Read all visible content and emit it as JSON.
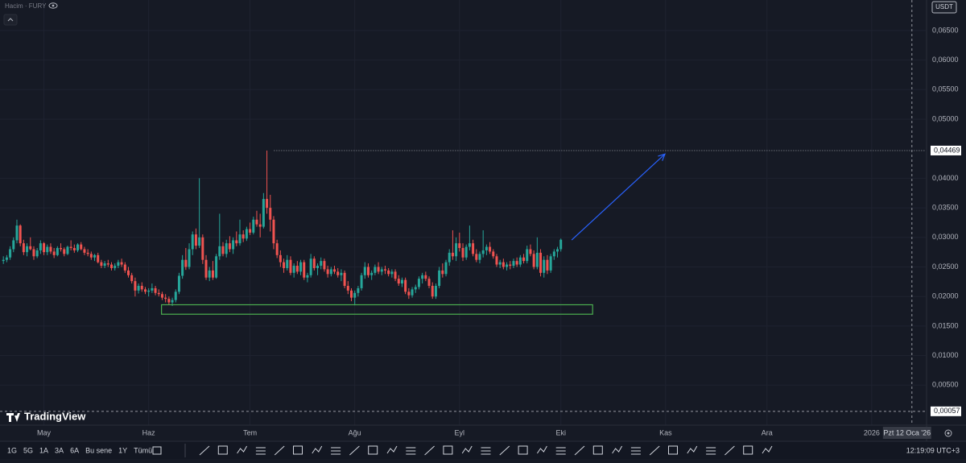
{
  "header": {
    "legend": "Hacim · FURY",
    "currency": "USDT"
  },
  "chart_data": {
    "type": "candlestick",
    "up_color": "#26a69a",
    "down_color": "#ef5350",
    "xlim": [
      -1,
      273
    ],
    "ylim": [
      -0.00177,
      0.07016
    ],
    "grid": true,
    "xticks": [
      {
        "value": 12,
        "label": "May"
      },
      {
        "value": 43,
        "label": "Haz"
      },
      {
        "value": 73,
        "label": "Tem"
      },
      {
        "value": 104,
        "label": "Ağu"
      },
      {
        "value": 135,
        "label": "Eyl"
      },
      {
        "value": 165,
        "label": "Eki"
      },
      {
        "value": 196,
        "label": "Kas"
      },
      {
        "value": 226,
        "label": "Ara"
      },
      {
        "value": 257,
        "label": "2026"
      }
    ],
    "yticks": [
      {
        "value": 0.065,
        "label": "0,06500"
      },
      {
        "value": 0.06,
        "label": "0,06000"
      },
      {
        "value": 0.055,
        "label": "0,05500"
      },
      {
        "value": 0.05,
        "label": "0,05000"
      },
      {
        "value": 0.04,
        "label": "0,04000"
      },
      {
        "value": 0.035,
        "label": "0,03500"
      },
      {
        "value": 0.03,
        "label": "0,03000"
      },
      {
        "value": 0.025,
        "label": "0,02500"
      },
      {
        "value": 0.02,
        "label": "0,02000"
      },
      {
        "value": 0.015,
        "label": "0,01500"
      },
      {
        "value": 0.01,
        "label": "0,01000"
      },
      {
        "value": 0.005,
        "label": "0,00500"
      }
    ],
    "ohlc": [
      [
        0.026,
        0.0268,
        0.0255,
        0.0262
      ],
      [
        0.0262,
        0.027,
        0.0258,
        0.0266
      ],
      [
        0.0266,
        0.0285,
        0.0262,
        0.028
      ],
      [
        0.028,
        0.03,
        0.0275,
        0.0295
      ],
      [
        0.0295,
        0.033,
        0.029,
        0.032
      ],
      [
        0.032,
        0.0322,
        0.0285,
        0.029
      ],
      [
        0.029,
        0.0296,
        0.027,
        0.0275
      ],
      [
        0.0275,
        0.029,
        0.0268,
        0.0285
      ],
      [
        0.0285,
        0.03,
        0.0278,
        0.028
      ],
      [
        0.028,
        0.0285,
        0.0262,
        0.0268
      ],
      [
        0.0268,
        0.0282,
        0.0265,
        0.0278
      ],
      [
        0.0278,
        0.0295,
        0.0272,
        0.029
      ],
      [
        0.029,
        0.0292,
        0.027,
        0.0275
      ],
      [
        0.0275,
        0.0288,
        0.027,
        0.0284
      ],
      [
        0.0284,
        0.029,
        0.0272,
        0.0276
      ],
      [
        0.0276,
        0.0282,
        0.0265,
        0.027
      ],
      [
        0.027,
        0.0285,
        0.0268,
        0.0282
      ],
      [
        0.0282,
        0.029,
        0.0276,
        0.028
      ],
      [
        0.028,
        0.0283,
        0.0268,
        0.0272
      ],
      [
        0.0272,
        0.0286,
        0.027,
        0.0284
      ],
      [
        0.0284,
        0.0295,
        0.0278,
        0.0282
      ],
      [
        0.0282,
        0.0288,
        0.0274,
        0.0278
      ],
      [
        0.0278,
        0.029,
        0.0275,
        0.0288
      ],
      [
        0.0288,
        0.0292,
        0.0278,
        0.028
      ],
      [
        0.028,
        0.0284,
        0.027,
        0.0274
      ],
      [
        0.0274,
        0.028,
        0.0268,
        0.0272
      ],
      [
        0.0272,
        0.0276,
        0.0262,
        0.0266
      ],
      [
        0.0266,
        0.0272,
        0.026,
        0.027
      ],
      [
        0.027,
        0.0274,
        0.0256,
        0.0258
      ],
      [
        0.0258,
        0.0262,
        0.0248,
        0.0252
      ],
      [
        0.0252,
        0.026,
        0.0248,
        0.0256
      ],
      [
        0.0256,
        0.0262,
        0.025,
        0.0254
      ],
      [
        0.0254,
        0.0258,
        0.0244,
        0.0248
      ],
      [
        0.0248,
        0.0256,
        0.0244,
        0.0252
      ],
      [
        0.0252,
        0.0262,
        0.0248,
        0.0258
      ],
      [
        0.0258,
        0.0264,
        0.025,
        0.0254
      ],
      [
        0.0254,
        0.0258,
        0.024,
        0.0244
      ],
      [
        0.0244,
        0.025,
        0.0232,
        0.0236
      ],
      [
        0.0236,
        0.024,
        0.0222,
        0.0226
      ],
      [
        0.0226,
        0.0232,
        0.02,
        0.021
      ],
      [
        0.021,
        0.0222,
        0.0205,
        0.0218
      ],
      [
        0.0218,
        0.0224,
        0.0208,
        0.0212
      ],
      [
        0.0212,
        0.0216,
        0.0204,
        0.0208
      ],
      [
        0.0208,
        0.0214,
        0.02,
        0.021
      ],
      [
        0.021,
        0.0222,
        0.0206,
        0.0214
      ],
      [
        0.0214,
        0.0218,
        0.0202,
        0.0206
      ],
      [
        0.0206,
        0.0212,
        0.02,
        0.0204
      ],
      [
        0.0204,
        0.0208,
        0.0194,
        0.0198
      ],
      [
        0.0198,
        0.0204,
        0.019,
        0.0196
      ],
      [
        0.0196,
        0.02,
        0.0186,
        0.019
      ],
      [
        0.019,
        0.0198,
        0.0184,
        0.0194
      ],
      [
        0.0194,
        0.0212,
        0.019,
        0.0208
      ],
      [
        0.0208,
        0.024,
        0.0204,
        0.0235
      ],
      [
        0.0235,
        0.027,
        0.023,
        0.0262
      ],
      [
        0.0262,
        0.0282,
        0.0245,
        0.025
      ],
      [
        0.025,
        0.029,
        0.0246,
        0.028
      ],
      [
        0.028,
        0.031,
        0.027,
        0.0305
      ],
      [
        0.0305,
        0.0315,
        0.028,
        0.0286
      ],
      [
        0.0286,
        0.04,
        0.0282,
        0.03
      ],
      [
        0.03,
        0.0305,
        0.0255,
        0.0262
      ],
      [
        0.0262,
        0.027,
        0.0228,
        0.0232
      ],
      [
        0.0232,
        0.025,
        0.0226,
        0.0244
      ],
      [
        0.0244,
        0.026,
        0.0228,
        0.0232
      ],
      [
        0.0232,
        0.0272,
        0.023,
        0.0268
      ],
      [
        0.0268,
        0.034,
        0.0262,
        0.0285
      ],
      [
        0.0285,
        0.0292,
        0.0268,
        0.0272
      ],
      [
        0.0272,
        0.0296,
        0.0266,
        0.029
      ],
      [
        0.029,
        0.0302,
        0.0275,
        0.028
      ],
      [
        0.028,
        0.03,
        0.0272,
        0.0295
      ],
      [
        0.0295,
        0.031,
        0.0285,
        0.029
      ],
      [
        0.029,
        0.033,
        0.0286,
        0.0305
      ],
      [
        0.0305,
        0.0312,
        0.0292,
        0.0298
      ],
      [
        0.0298,
        0.0318,
        0.0294,
        0.0314
      ],
      [
        0.0314,
        0.0325,
        0.0304,
        0.0308
      ],
      [
        0.0308,
        0.0335,
        0.0305,
        0.033
      ],
      [
        0.033,
        0.0345,
        0.0318,
        0.0322
      ],
      [
        0.0322,
        0.034,
        0.03,
        0.0318
      ],
      [
        0.0318,
        0.0375,
        0.0315,
        0.0365
      ],
      [
        0.0365,
        0.04469,
        0.034,
        0.035
      ],
      [
        0.035,
        0.0372,
        0.031,
        0.033
      ],
      [
        0.033,
        0.0336,
        0.028,
        0.029
      ],
      [
        0.029,
        0.0296,
        0.0265,
        0.027
      ],
      [
        0.027,
        0.0278,
        0.025,
        0.0258
      ],
      [
        0.0258,
        0.0264,
        0.024,
        0.0248
      ],
      [
        0.0248,
        0.027,
        0.0244,
        0.0262
      ],
      [
        0.0262,
        0.0268,
        0.0236,
        0.024
      ],
      [
        0.024,
        0.0256,
        0.0232,
        0.0252
      ],
      [
        0.0252,
        0.026,
        0.0238,
        0.0242
      ],
      [
        0.0242,
        0.0262,
        0.0236,
        0.0258
      ],
      [
        0.0258,
        0.0262,
        0.0228,
        0.0232
      ],
      [
        0.0232,
        0.024,
        0.0224,
        0.0236
      ],
      [
        0.0236,
        0.0272,
        0.0232,
        0.0264
      ],
      [
        0.0264,
        0.0268,
        0.0244,
        0.0248
      ],
      [
        0.0248,
        0.0256,
        0.0236,
        0.0252
      ],
      [
        0.0252,
        0.0266,
        0.0246,
        0.026
      ],
      [
        0.026,
        0.0264,
        0.0242,
        0.0246
      ],
      [
        0.0246,
        0.0252,
        0.0232,
        0.0238
      ],
      [
        0.0238,
        0.025,
        0.0234,
        0.0246
      ],
      [
        0.0246,
        0.0252,
        0.0238,
        0.0242
      ],
      [
        0.0242,
        0.0248,
        0.0232,
        0.0236
      ],
      [
        0.0236,
        0.0246,
        0.0226,
        0.024
      ],
      [
        0.024,
        0.0244,
        0.0214,
        0.0218
      ],
      [
        0.0218,
        0.0226,
        0.0204,
        0.021
      ],
      [
        0.021,
        0.0214,
        0.0192,
        0.0198
      ],
      [
        0.0198,
        0.021,
        0.0185,
        0.0206
      ],
      [
        0.0206,
        0.0218,
        0.02,
        0.0214
      ],
      [
        0.0214,
        0.024,
        0.021,
        0.0236
      ],
      [
        0.0236,
        0.0258,
        0.023,
        0.025
      ],
      [
        0.025,
        0.0256,
        0.0232,
        0.0236
      ],
      [
        0.0236,
        0.0244,
        0.0228,
        0.024
      ],
      [
        0.024,
        0.0254,
        0.0236,
        0.025
      ],
      [
        0.025,
        0.0258,
        0.0238,
        0.0242
      ],
      [
        0.0242,
        0.025,
        0.0236,
        0.0246
      ],
      [
        0.0246,
        0.0252,
        0.0238,
        0.0244
      ],
      [
        0.0244,
        0.0248,
        0.0234,
        0.0238
      ],
      [
        0.0238,
        0.0246,
        0.0232,
        0.0242
      ],
      [
        0.0242,
        0.0246,
        0.0226,
        0.023
      ],
      [
        0.023,
        0.0236,
        0.0218,
        0.0222
      ],
      [
        0.0222,
        0.0232,
        0.0216,
        0.0228
      ],
      [
        0.0228,
        0.0232,
        0.0204,
        0.0208
      ],
      [
        0.0208,
        0.0214,
        0.0196,
        0.0202
      ],
      [
        0.0202,
        0.0216,
        0.0198,
        0.0212
      ],
      [
        0.0212,
        0.022,
        0.0206,
        0.0216
      ],
      [
        0.0216,
        0.0234,
        0.0212,
        0.023
      ],
      [
        0.023,
        0.024,
        0.0222,
        0.0236
      ],
      [
        0.0236,
        0.0242,
        0.0226,
        0.023
      ],
      [
        0.023,
        0.0234,
        0.0214,
        0.0218
      ],
      [
        0.0218,
        0.0224,
        0.0196,
        0.02
      ],
      [
        0.02,
        0.0222,
        0.0196,
        0.0218
      ],
      [
        0.0218,
        0.025,
        0.0214,
        0.0244
      ],
      [
        0.0244,
        0.0256,
        0.0232,
        0.0238
      ],
      [
        0.0238,
        0.0262,
        0.0234,
        0.0258
      ],
      [
        0.0258,
        0.028,
        0.0252,
        0.0274
      ],
      [
        0.0274,
        0.0312,
        0.0262,
        0.0268
      ],
      [
        0.0268,
        0.03,
        0.026,
        0.029
      ],
      [
        0.029,
        0.0308,
        0.0276,
        0.0282
      ],
      [
        0.0282,
        0.029,
        0.026,
        0.0266
      ],
      [
        0.0266,
        0.0288,
        0.0262,
        0.0284
      ],
      [
        0.0284,
        0.032,
        0.0278,
        0.029
      ],
      [
        0.029,
        0.0296,
        0.0268,
        0.0272
      ],
      [
        0.0272,
        0.028,
        0.0258,
        0.0262
      ],
      [
        0.0262,
        0.0276,
        0.0256,
        0.0272
      ],
      [
        0.0272,
        0.0312,
        0.0266,
        0.0278
      ],
      [
        0.0278,
        0.0288,
        0.027,
        0.0284
      ],
      [
        0.0284,
        0.0292,
        0.0272,
        0.0276
      ],
      [
        0.0276,
        0.028,
        0.0264,
        0.0268
      ],
      [
        0.0268,
        0.0272,
        0.025,
        0.0254
      ],
      [
        0.0254,
        0.0262,
        0.0248,
        0.0258
      ],
      [
        0.0258,
        0.0264,
        0.0246,
        0.025
      ],
      [
        0.025,
        0.0258,
        0.0244,
        0.0254
      ],
      [
        0.0254,
        0.026,
        0.0246,
        0.0252
      ],
      [
        0.0252,
        0.0264,
        0.0248,
        0.026
      ],
      [
        0.026,
        0.0266,
        0.025,
        0.0254
      ],
      [
        0.0254,
        0.027,
        0.025,
        0.0266
      ],
      [
        0.0266,
        0.0272,
        0.0256,
        0.026
      ],
      [
        0.026,
        0.0286,
        0.0256,
        0.028
      ],
      [
        0.028,
        0.0288,
        0.0268,
        0.0272
      ],
      [
        0.0272,
        0.0278,
        0.0246,
        0.025
      ],
      [
        0.025,
        0.03,
        0.0246,
        0.0274
      ],
      [
        0.0274,
        0.028,
        0.0234,
        0.024
      ],
      [
        0.024,
        0.0268,
        0.0232,
        0.0262
      ],
      [
        0.0262,
        0.027,
        0.0238,
        0.0244
      ],
      [
        0.0244,
        0.0272,
        0.024,
        0.0268
      ],
      [
        0.0268,
        0.028,
        0.0262,
        0.0276
      ],
      [
        0.0276,
        0.0284,
        0.0266,
        0.028
      ],
      [
        0.028,
        0.0298,
        0.0276,
        0.0296
      ]
    ],
    "hline": {
      "value": 0.04469,
      "label": "0,04469",
      "start_x": 80.1
    },
    "support_box": {
      "x": [
        46.8,
        174.4
      ],
      "y": [
        0.017,
        0.0186
      ],
      "color": "#4caf50"
    },
    "arrow": {
      "x": [
        168.2,
        195.8
      ],
      "y": [
        0.02956,
        0.0441
      ],
      "color": "#2962ff"
    },
    "crosshair": {
      "x": 268.9,
      "y": 0.00057,
      "y_label": "0,00057",
      "x_label": "Pzt 12 Oca '26"
    }
  },
  "logo": "TradingView",
  "toolbar": {
    "ranges": [
      "1G",
      "5G",
      "1A",
      "3A",
      "6A",
      "Bu sene",
      "1Y",
      "Tümü"
    ],
    "time": "12:19:09 UTC+3"
  }
}
